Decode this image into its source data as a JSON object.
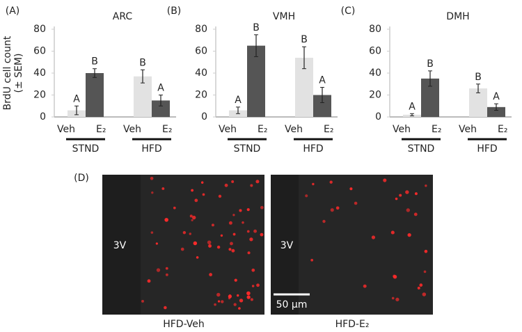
{
  "chart_data": [
    {
      "type": "bar",
      "panel_label": "(A)",
      "title": "ARC",
      "ylabel": [
        "BrdU cell count",
        "(± SEM)"
      ],
      "categories": [
        "STND",
        "HFD"
      ],
      "ylim": [
        0,
        80
      ],
      "yticks": [
        0,
        20,
        40,
        60,
        80
      ],
      "series": [
        {
          "name": "Veh",
          "color": "#e2e2e2",
          "values": [
            6,
            37
          ],
          "errors": [
            4,
            6
          ],
          "letters": [
            "A",
            "B"
          ]
        },
        {
          "name": "E₂",
          "color": "#555555",
          "values": [
            40,
            15
          ],
          "errors": [
            4,
            5
          ],
          "letters": [
            "B",
            "A"
          ]
        }
      ]
    },
    {
      "type": "bar",
      "panel_label": "(B)",
      "title": "VMH",
      "categories": [
        "STND",
        "HFD"
      ],
      "ylim": [
        0,
        80
      ],
      "yticks": [
        0,
        20,
        40,
        60,
        80
      ],
      "series": [
        {
          "name": "Veh",
          "color": "#e2e2e2",
          "values": [
            6,
            54
          ],
          "errors": [
            3,
            10
          ],
          "letters": [
            "A",
            "B"
          ]
        },
        {
          "name": "E₂",
          "color": "#555555",
          "values": [
            65,
            20
          ],
          "errors": [
            10,
            7
          ],
          "letters": [
            "B",
            "A"
          ]
        }
      ]
    },
    {
      "type": "bar",
      "panel_label": "(C)",
      "title": "DMH",
      "categories": [
        "STND",
        "HFD"
      ],
      "ylim": [
        0,
        80
      ],
      "yticks": [
        0,
        20,
        40,
        60,
        80
      ],
      "series": [
        {
          "name": "Veh",
          "color": "#e2e2e2",
          "values": [
            2,
            26
          ],
          "errors": [
            1,
            4
          ],
          "letters": [
            "A",
            "B"
          ]
        },
        {
          "name": "E₂",
          "color": "#555555",
          "values": [
            35,
            9
          ],
          "errors": [
            7,
            3
          ],
          "letters": [
            "B",
            "A"
          ]
        }
      ]
    }
  ],
  "panel_d": {
    "label": "(D)",
    "images": [
      {
        "region": "3V",
        "caption": "HFD-Veh"
      },
      {
        "region": "3V",
        "caption": "HFD-E₂",
        "scale_bar": "50 μm"
      }
    ]
  }
}
